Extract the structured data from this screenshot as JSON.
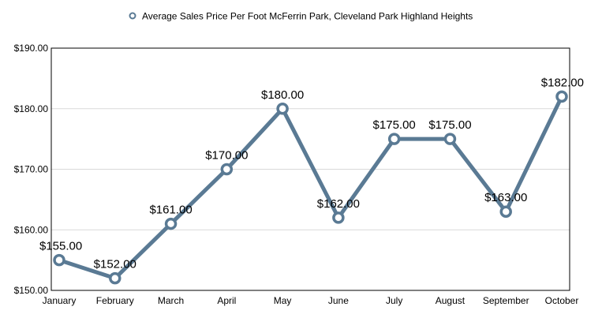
{
  "chart_data": {
    "type": "line",
    "title": "",
    "xlabel": "",
    "ylabel": "",
    "categories": [
      "January",
      "February",
      "March",
      "April",
      "May",
      "June",
      "July",
      "August",
      "September",
      "October"
    ],
    "series": [
      {
        "name": "Average Sales Price Per Foot McFerrin Park, Cleveland Park Highland Heights",
        "values": [
          155,
          152,
          161,
          170,
          180,
          162,
          175,
          175,
          163,
          182
        ],
        "labels": [
          "$155.00",
          "$152.00",
          "$161.00",
          "$170.00",
          "$180.00",
          "$162.00",
          "$175.00",
          "$175.00",
          "$163.00",
          "$182.00"
        ],
        "color": "#5a7a94"
      }
    ],
    "ylim": [
      150,
      190
    ],
    "yticks": [
      150,
      160,
      170,
      180,
      190
    ],
    "ytick_labels": [
      "$150.00",
      "$160.00",
      "$170.00",
      "$180.00",
      "$190.00"
    ],
    "grid": true,
    "legend_position": "top-center"
  }
}
